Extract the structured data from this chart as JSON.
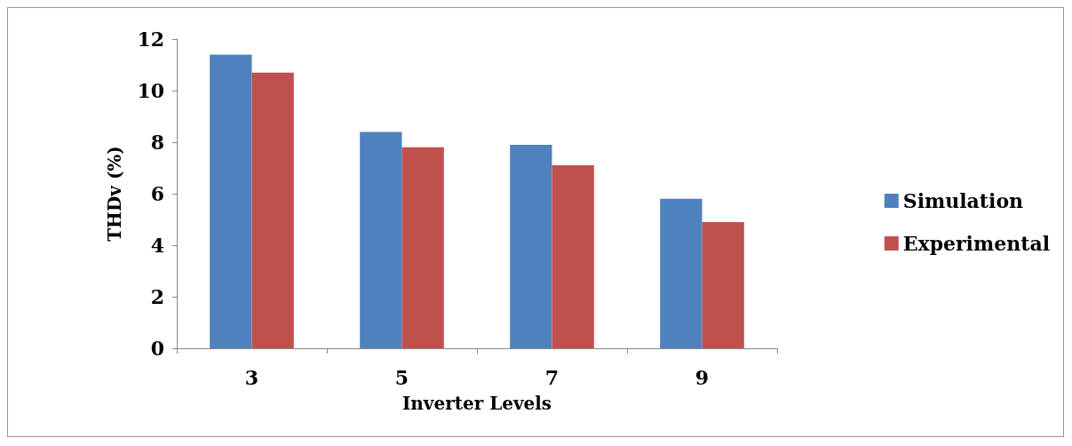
{
  "chart_data": {
    "type": "bar",
    "xlabel": "Inverter Levels",
    "ylabel": "THDv (%)",
    "categories": [
      "3",
      "5",
      "7",
      "9"
    ],
    "series": [
      {
        "name": "Simulation",
        "color": "#4f81bd",
        "values": [
          11.4,
          8.4,
          7.9,
          5.8
        ]
      },
      {
        "name": "Experimental",
        "color": "#c0504d",
        "values": [
          10.7,
          7.8,
          7.1,
          4.9
        ]
      }
    ],
    "ylim": [
      0,
      12
    ],
    "yticks": [
      0,
      2,
      4,
      6,
      8,
      10,
      12
    ],
    "grid": false,
    "legend": "right"
  }
}
